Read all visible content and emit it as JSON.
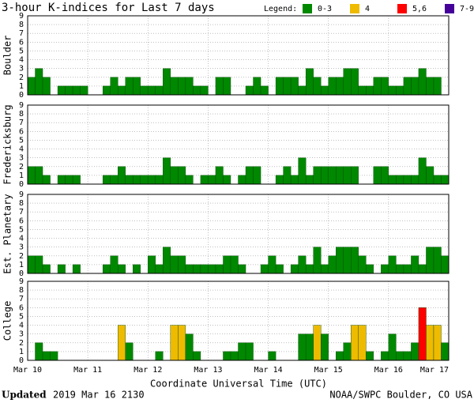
{
  "header": {
    "title": "3-hour K-indices for Last 7 days",
    "legend_label": "Legend:",
    "legend": [
      {
        "label": "0-3",
        "color": "#008800"
      },
      {
        "label": "4",
        "color": "#eebb00"
      },
      {
        "label": "5,6",
        "color": "#ff0000"
      },
      {
        "label": "7-9",
        "color": "#440099"
      }
    ]
  },
  "x_axis": {
    "labels": [
      "Mar 10",
      "Mar 11",
      "Mar 12",
      "Mar 13",
      "Mar 14",
      "Mar 15",
      "Mar 16",
      "Mar 17"
    ],
    "title": "Coordinate Universal Time (UTC)"
  },
  "footer": {
    "updated": "Updated",
    "date": "2019 Mar 16 2130",
    "source": "NOAA/SWPC Boulder, CO USA"
  },
  "chart_data": [
    {
      "type": "bar",
      "ylabel": "Boulder",
      "ylim": [
        0,
        9
      ],
      "yticks": [
        0,
        1,
        2,
        3,
        4,
        5,
        6,
        7,
        8,
        9
      ],
      "grid": true,
      "values": [
        2,
        3,
        2,
        0,
        1,
        1,
        1,
        1,
        0,
        0,
        1,
        2,
        1,
        2,
        2,
        1,
        1,
        1,
        3,
        2,
        2,
        2,
        1,
        1,
        0,
        2,
        2,
        0,
        0,
        1,
        2,
        1,
        0,
        2,
        2,
        2,
        1,
        3,
        2,
        1,
        2,
        2,
        3,
        3,
        1,
        1,
        2,
        2,
        1,
        1,
        2,
        2,
        3,
        2,
        2,
        0
      ]
    },
    {
      "type": "bar",
      "ylabel": "Fredericksburg",
      "ylim": [
        0,
        9
      ],
      "yticks": [
        0,
        1,
        2,
        3,
        4,
        5,
        6,
        7,
        8,
        9
      ],
      "grid": true,
      "values": [
        2,
        2,
        1,
        0,
        1,
        1,
        1,
        0,
        0,
        0,
        1,
        1,
        2,
        1,
        1,
        1,
        1,
        1,
        3,
        2,
        2,
        1,
        0,
        1,
        1,
        2,
        1,
        0,
        1,
        2,
        2,
        0,
        0,
        1,
        2,
        1,
        3,
        1,
        2,
        2,
        2,
        2,
        2,
        2,
        0,
        0,
        2,
        2,
        1,
        1,
        1,
        1,
        3,
        2,
        1,
        1
      ]
    },
    {
      "type": "bar",
      "ylabel": "Est. Planetary",
      "ylim": [
        0,
        9
      ],
      "yticks": [
        0,
        1,
        2,
        3,
        4,
        5,
        6,
        7,
        8,
        9
      ],
      "grid": true,
      "values": [
        2,
        2,
        1,
        0,
        1,
        0,
        1,
        0,
        0,
        0,
        1,
        2,
        1,
        0,
        1,
        0,
        2,
        1,
        3,
        2,
        2,
        1,
        1,
        1,
        1,
        1,
        2,
        2,
        1,
        0,
        0,
        1,
        2,
        1,
        0,
        1,
        2,
        1,
        3,
        1,
        2,
        3,
        3,
        3,
        2,
        1,
        0,
        1,
        2,
        1,
        1,
        2,
        1,
        3,
        3,
        2
      ]
    },
    {
      "type": "bar",
      "ylabel": "College",
      "ylim": [
        0,
        9
      ],
      "yticks": [
        0,
        1,
        2,
        3,
        4,
        5,
        6,
        7,
        8,
        9
      ],
      "grid": true,
      "values": [
        0,
        2,
        1,
        1,
        0,
        0,
        0,
        0,
        0,
        0,
        0,
        0,
        4,
        2,
        0,
        0,
        0,
        1,
        0,
        4,
        4,
        3,
        1,
        0,
        0,
        0,
        1,
        1,
        2,
        2,
        0,
        0,
        1,
        0,
        0,
        0,
        3,
        3,
        4,
        3,
        0,
        1,
        2,
        4,
        4,
        1,
        0,
        1,
        3,
        1,
        1,
        2,
        6,
        4,
        4,
        2
      ]
    }
  ]
}
